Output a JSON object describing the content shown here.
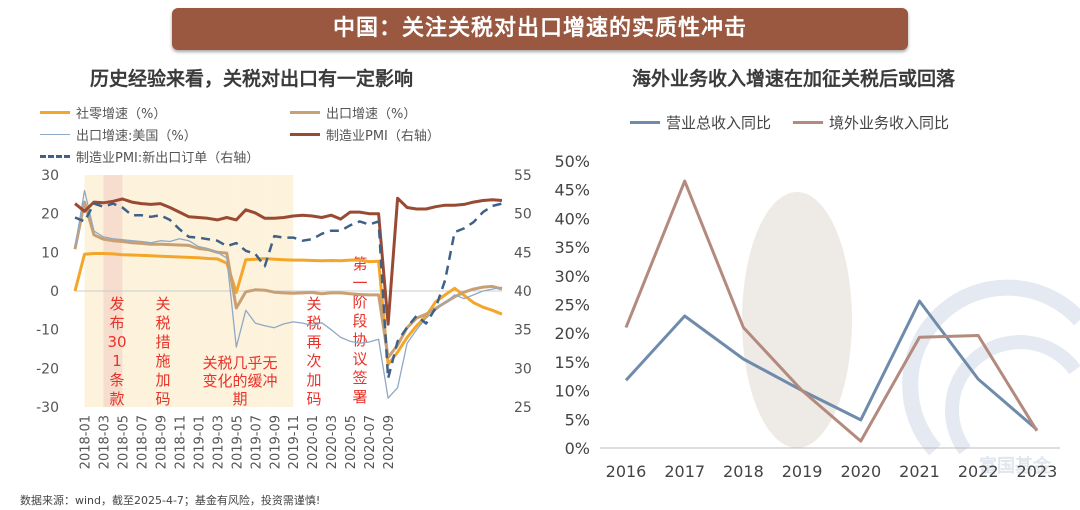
{
  "header": {
    "title": "中国：关注关税对出口增速的实质性冲击"
  },
  "left": {
    "subtitle": "历史经验来看，关税对出口有一定影响",
    "legend": [
      {
        "label": "社零增速（%）",
        "color": "#f4a62a",
        "style": "solid"
      },
      {
        "label": "出口增速（%）",
        "color": "#c9a073",
        "style": "solid"
      },
      {
        "label": "出口增速:美国（%）",
        "color": "#8fa9c4",
        "style": "thin"
      },
      {
        "label": "制造业PMI（右轴）",
        "color": "#9a4a32",
        "style": "solid"
      },
      {
        "label": "制造业PMI:新出口订单（右轴）",
        "color": "#3f6187",
        "style": "dashed"
      }
    ],
    "footnote": "数据来源：wind，截至2025-4-7；基金有风险，投资需谨慎!"
  },
  "right": {
    "subtitle": "海外业务收入增速在加征关税后或回落",
    "watermark": "富国基金"
  },
  "chart_data": [
    {
      "type": "line",
      "x_tick_labels": [
        "2018-01",
        "2018-03",
        "2018-05",
        "2018-07",
        "2018-09",
        "2018-11",
        "2019-01",
        "2019-03",
        "2019-05",
        "2019-07",
        "2019-09",
        "2019-11",
        "2020-01",
        "2020-03",
        "2020-05",
        "2020-07",
        "2020-09"
      ],
      "y_left": {
        "ticks": [
          -30,
          -20,
          -10,
          0,
          10,
          20,
          30
        ],
        "ylim": [
          -30,
          30
        ]
      },
      "y_right": {
        "ticks": [
          25,
          30,
          35,
          40,
          45,
          50,
          55
        ],
        "ylim": [
          25,
          55
        ]
      },
      "shaded_periods": [
        {
          "start": 1,
          "end": 5,
          "label": "发布301条款"
        },
        {
          "start": 3,
          "end": 5,
          "label": "关税措施加码"
        },
        {
          "start": 5,
          "end": 17,
          "label": "关税几乎无变化的缓冲期"
        },
        {
          "start": 17,
          "end": 20,
          "label": "关税再次加码"
        },
        {
          "start": 20,
          "end": 23,
          "label": "第一阶段协议签署"
        }
      ],
      "series": [
        {
          "name": "社零增速（%）",
          "axis": "left",
          "color": "#f4a62a",
          "width": 3,
          "values": [
            0,
            9.5,
            9.7,
            9.7,
            9.6,
            9.4,
            9.3,
            9.2,
            9.1,
            9.0,
            8.9,
            8.8,
            8.7,
            8.6,
            8.4,
            8.3,
            7.2,
            -0.4,
            8.1,
            8.2,
            8.4,
            8.2,
            8.1,
            8.0,
            8.0,
            7.9,
            7.8,
            7.9,
            7.8,
            8.0,
            8.0,
            7.6,
            7.7,
            -19.0,
            -15.8,
            -12.0,
            -9.0,
            -6.5,
            -2.8,
            -1.0,
            0.7,
            -1.1,
            -3.0,
            -4.2,
            -5.0,
            -6.0
          ]
        },
        {
          "name": "出口增速（%）",
          "axis": "left",
          "color": "#c9a073",
          "width": 3,
          "values": [
            10.8,
            23.0,
            14.5,
            13.4,
            13.0,
            12.8,
            12.5,
            12.3,
            12.1,
            12.1,
            12.0,
            11.9,
            11.8,
            11.0,
            10.7,
            10.0,
            9.8,
            -4.4,
            -0.2,
            0.3,
            0.2,
            -0.3,
            -0.5,
            -0.6,
            -0.5,
            -0.4,
            -0.7,
            -0.5,
            -0.5,
            -0.7,
            -0.9,
            -1.0,
            -1.0,
            -17.2,
            -14.0,
            -9.5,
            -7.0,
            -6.0,
            -4.5,
            -3.0,
            -1.5,
            -0.3,
            0.5,
            1.0,
            1.2,
            0.5
          ]
        },
        {
          "name": "出口增速:美国（%）",
          "axis": "left",
          "color": "#8fa9c4",
          "width": 1.3,
          "values": [
            11.0,
            26.0,
            15.5,
            14.0,
            13.5,
            13.3,
            13.0,
            12.8,
            12.5,
            13.0,
            12.8,
            13.5,
            13.0,
            11.5,
            11.0,
            10.0,
            8.5,
            -14.5,
            -5.0,
            -8.3,
            -9.0,
            -9.5,
            -8.5,
            -8.0,
            -8.3,
            -9.0,
            -8.2,
            -10.0,
            -12.0,
            -13.0,
            -13.5,
            -13.2,
            -12.5,
            -27.7,
            -25.0,
            -13.5,
            -10.0,
            -7.0,
            -5.0,
            -3.0,
            -1.0,
            -2.0,
            -1.0,
            0,
            0.5,
            1.0
          ]
        },
        {
          "name": "制造业PMI（右轴）",
          "axis": "right",
          "color": "#9a4a32",
          "width": 3,
          "values": [
            51.3,
            50.3,
            51.5,
            51.4,
            51.6,
            51.9,
            51.5,
            51.3,
            51.2,
            51.3,
            50.8,
            50.2,
            49.6,
            49.5,
            49.4,
            49.2,
            49.5,
            49.2,
            50.5,
            50.1,
            49.4,
            49.4,
            49.5,
            49.7,
            49.8,
            49.7,
            49.5,
            49.8,
            49.3,
            50.2,
            50.2,
            50.0,
            50.0,
            35.7,
            52.0,
            50.8,
            50.6,
            50.6,
            50.9,
            51.1,
            51.1,
            51.2,
            51.5,
            51.7,
            51.8,
            51.7
          ]
        },
        {
          "name": "制造业PMI:新出口订单（右轴）",
          "axis": "right",
          "color": "#3f6187",
          "width": 2.5,
          "dashed": true,
          "values": [
            49.5,
            49.0,
            51.3,
            50.9,
            51.3,
            50.8,
            49.8,
            49.8,
            49.6,
            49.8,
            49.2,
            48.0,
            47.0,
            46.9,
            46.7,
            46.5,
            45.8,
            46.2,
            45.2,
            44.8,
            43.2,
            47.1,
            46.9,
            46.9,
            46.5,
            46.7,
            47.4,
            47.8,
            47.8,
            48.5,
            49.0,
            48.6,
            49.0,
            28.7,
            33.5,
            35.3,
            36.8,
            35.8,
            37.8,
            41.4,
            47.6,
            48.1,
            48.9,
            50.2,
            51.0,
            51.3
          ]
        }
      ]
    },
    {
      "type": "line",
      "categories": [
        "2016",
        "2017",
        "2018",
        "2019",
        "2020",
        "2021",
        "2022",
        "2023"
      ],
      "ylim": [
        0,
        50
      ],
      "y_ticks": [
        "0%",
        "5%",
        "10%",
        "15%",
        "20%",
        "25%",
        "30%",
        "35%",
        "40%",
        "45%",
        "50%"
      ],
      "series": [
        {
          "name": "营业总收入同比",
          "color": "#6f8bac",
          "values": [
            11.8,
            23.0,
            15.5,
            10.0,
            4.9,
            25.6,
            12.0,
            3.2
          ]
        },
        {
          "name": "境外业务收入同比",
          "color": "#b38a7d",
          "values": [
            21.0,
            46.5,
            21.0,
            10.0,
            1.2,
            19.3,
            19.6,
            3.0
          ]
        }
      ]
    }
  ]
}
